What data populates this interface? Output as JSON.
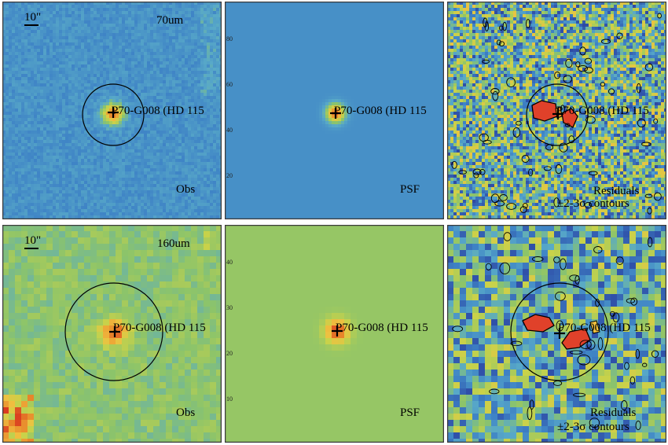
{
  "source_name": "P70-G008 (HD 115",
  "scale_bar_label": "10\"",
  "residuals_label": "Residuals",
  "contours_label": "±2-3σ contours",
  "rows": [
    {
      "wavelength": "70um",
      "y_ticks": [
        "20",
        "40",
        "60",
        "80"
      ],
      "panels": [
        {
          "kind": "observed",
          "label": "Obs"
        },
        {
          "kind": "psf",
          "label": "PSF"
        },
        {
          "kind": "residual",
          "label": "Residuals"
        }
      ]
    },
    {
      "wavelength": "160um",
      "y_ticks": [
        "10",
        "20",
        "30",
        "40"
      ],
      "panels": [
        {
          "kind": "observed",
          "label": "Obs"
        },
        {
          "kind": "psf",
          "label": "PSF"
        },
        {
          "kind": "residual",
          "label": "Residuals"
        }
      ]
    }
  ],
  "colors": {
    "frame": "#4a4a4a",
    "obs70_bg": "#4a8ec4",
    "psf70_bg": "#4b8fc6",
    "obs160_bg": "#9cc259",
    "psf160_bg": "#a4c358",
    "source_core": "#e04020",
    "annotation": "#000000"
  }
}
